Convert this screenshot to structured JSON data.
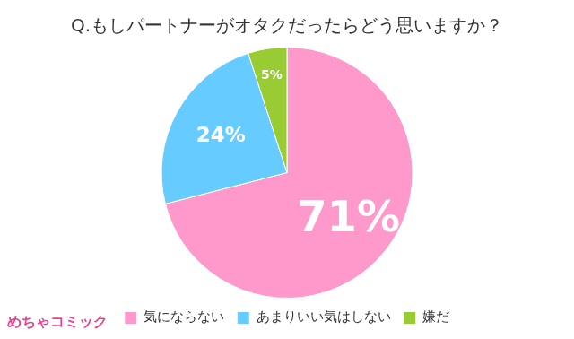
{
  "chart_data": {
    "type": "pie",
    "title": "Q.もしパートナーがオタクだったらどう思いますか？",
    "categories": [
      "気にならない",
      "あまりいい気はしない",
      "嫌だ"
    ],
    "values": [
      71,
      24,
      5
    ],
    "value_labels": [
      "71%",
      "24%",
      "5%"
    ],
    "colors": [
      "#ff99cc",
      "#66ccff",
      "#99cc33"
    ],
    "legend": "bottom",
    "data_labels": true,
    "annotations": [
      "めちゃコミック"
    ]
  }
}
